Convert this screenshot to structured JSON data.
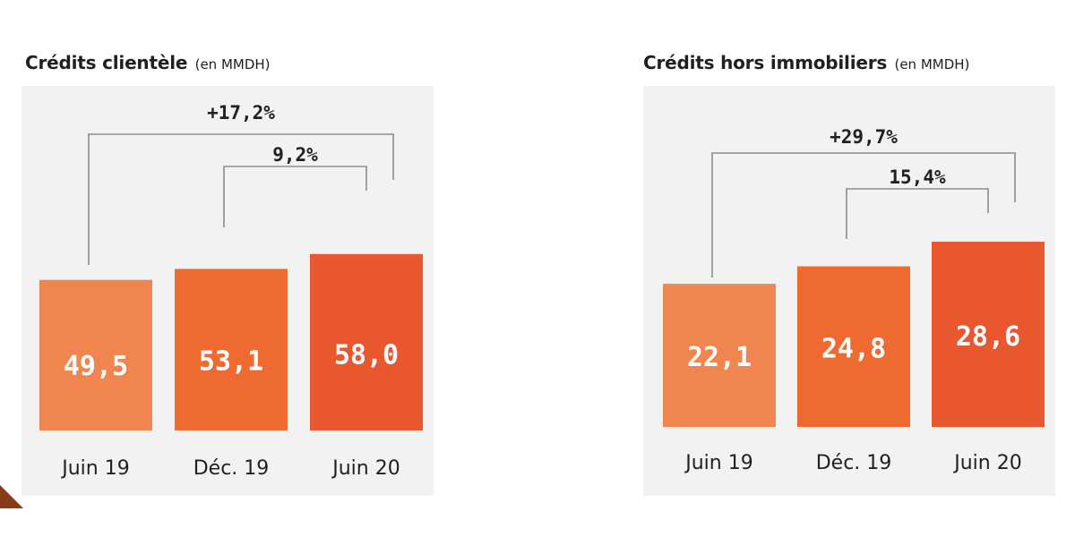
{
  "chart_data": [
    {
      "type": "bar",
      "title": "Crédits clientèle",
      "unit": "(en MMDH)",
      "categories": [
        "Juin 19",
        "Déc. 19",
        "Juin 20"
      ],
      "values": [
        49.5,
        53.1,
        58.0
      ],
      "value_labels": [
        "49,5",
        "53,1",
        "58,0"
      ],
      "colors": [
        "#f0854f",
        "#ee6a31",
        "#e8572d"
      ],
      "ylim": [
        0,
        100
      ],
      "grid": false,
      "annotations": [
        {
          "label": "+17,2%",
          "from": 0,
          "to": 2
        },
        {
          "label": "9,2%",
          "from": 1,
          "to": 2
        }
      ]
    },
    {
      "type": "bar",
      "title": "Crédits hors immobiliers",
      "unit": "(en MMDH)",
      "categories": [
        "Juin 19",
        "Déc. 19",
        "Juin 20"
      ],
      "values": [
        22.1,
        24.8,
        28.6
      ],
      "value_labels": [
        "22,1",
        "24,8",
        "28,6"
      ],
      "colors": [
        "#f0854f",
        "#ee6a31",
        "#e8572d"
      ],
      "ylim": [
        0,
        47
      ],
      "grid": false,
      "annotations": [
        {
          "label": "+29,7%",
          "from": 0,
          "to": 2
        },
        {
          "label": "15,4%",
          "from": 1,
          "to": 2
        }
      ]
    }
  ]
}
